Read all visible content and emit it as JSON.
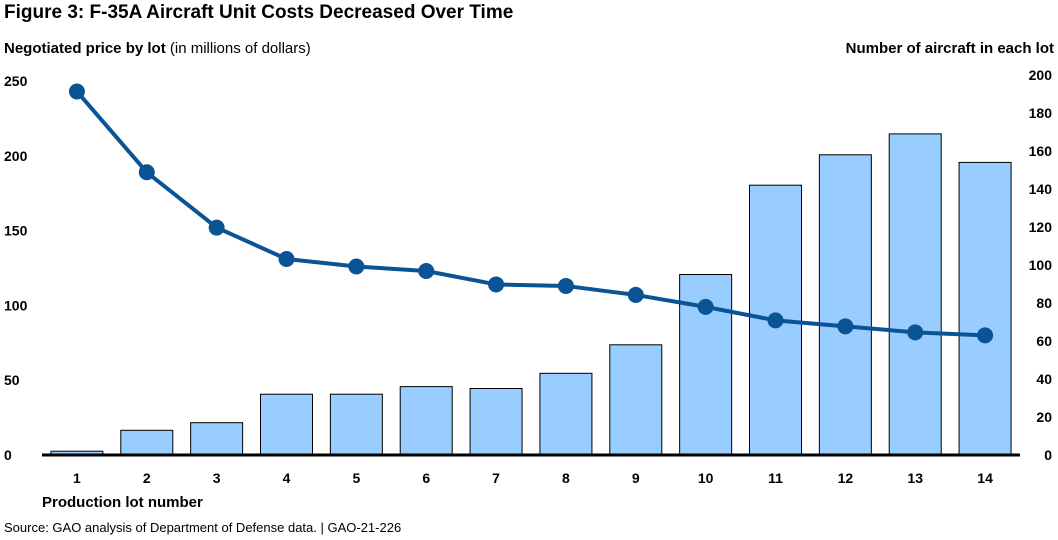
{
  "title": "Figure 3: F-35A Aircraft Unit Costs Decreased Over Time",
  "y_left_label_bold": "Negotiated price by lot",
  "y_left_label_note": "(in millions of dollars)",
  "y_right_label": "Number of aircraft in each lot",
  "x_label": "Production lot number",
  "source": "Source: GAO analysis of Department of Defense data.  |  GAO-21-226",
  "colors": {
    "bar_fill": "#99ccff",
    "bar_stroke": "#000000",
    "line": "#0a5394"
  },
  "chart_data": {
    "type": "bar+line",
    "categories": [
      "1",
      "2",
      "3",
      "4",
      "5",
      "6",
      "7",
      "8",
      "9",
      "10",
      "11",
      "12",
      "13",
      "14"
    ],
    "bars": {
      "axis": "right",
      "values": [
        2,
        13,
        17,
        32,
        32,
        36,
        35,
        43,
        58,
        95,
        142,
        158,
        169,
        154
      ]
    },
    "line": {
      "axis": "left",
      "values": [
        243,
        189,
        152,
        131,
        126,
        123,
        114,
        113,
        107,
        99,
        90,
        86,
        82,
        80
      ]
    },
    "y_left": {
      "range": [
        0,
        250
      ],
      "ticks": [
        0,
        50,
        100,
        150,
        200,
        250
      ]
    },
    "y_right": {
      "range": [
        0,
        200
      ],
      "ticks": [
        0,
        20,
        40,
        60,
        80,
        100,
        120,
        140,
        160,
        180,
        200
      ]
    },
    "grid": false
  }
}
